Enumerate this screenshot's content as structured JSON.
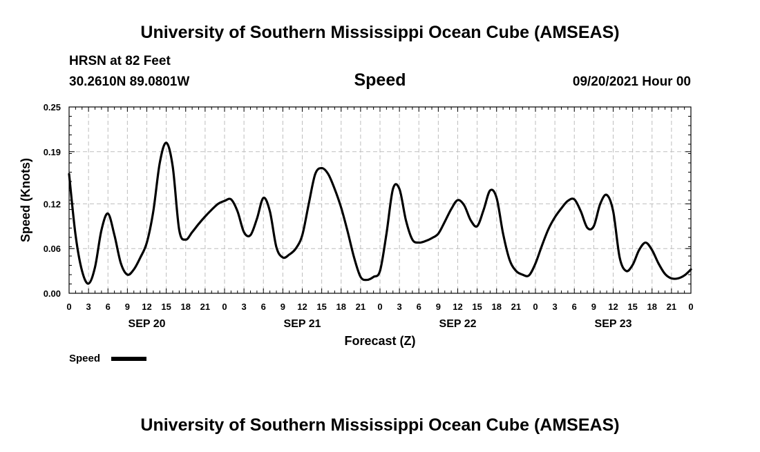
{
  "header": {
    "title": "University of Southern Mississippi Ocean Cube (AMSEAS)",
    "station": "HRSN at 82 Feet",
    "location": "30.2610N  89.0801W",
    "datetime": "09/20/2021 Hour 00"
  },
  "footer": {
    "title": "University of Southern Mississippi Ocean Cube (AMSEAS)"
  },
  "colors": {
    "line": "#000000",
    "grid": "#bdbdbd",
    "frame": "#000000"
  },
  "chart_data": {
    "type": "line",
    "title": "Speed",
    "xlabel": "Forecast (Z)",
    "ylabel": "Speed (Knots)",
    "xlim": [
      0,
      96
    ],
    "ylim": [
      0,
      0.25
    ],
    "x_unit": "hours from 09/20/2021 00Z",
    "y_ticks": [
      0,
      0.06,
      0.12,
      0.19,
      0.25
    ],
    "y_tick_labels": [
      "0.00",
      "0.06",
      "0.12",
      "0.19",
      "0.25"
    ],
    "x_ticks": [
      0,
      3,
      6,
      9,
      12,
      15,
      18,
      21,
      24,
      27,
      30,
      33,
      36,
      39,
      42,
      45,
      48,
      51,
      54,
      57,
      60,
      63,
      66,
      69,
      72,
      75,
      78,
      81,
      84,
      87,
      90,
      93,
      96
    ],
    "x_tick_labels": [
      "0",
      "3",
      "6",
      "9",
      "12",
      "15",
      "18",
      "21",
      "0",
      "3",
      "6",
      "9",
      "12",
      "15",
      "18",
      "21",
      "0",
      "3",
      "6",
      "9",
      "12",
      "15",
      "18",
      "21",
      "0",
      "3",
      "6",
      "9",
      "12",
      "15",
      "18",
      "21",
      "0"
    ],
    "day_labels": [
      {
        "x": 12,
        "label": "SEP 20"
      },
      {
        "x": 36,
        "label": "SEP 21"
      },
      {
        "x": 60,
        "label": "SEP 22"
      },
      {
        "x": 84,
        "label": "SEP 23"
      }
    ],
    "grid": true,
    "legend": {
      "position": "bottom-left",
      "label": "Speed"
    },
    "series": [
      {
        "name": "Speed",
        "x": [
          0,
          1,
          2,
          3,
          4,
          5,
          6,
          7,
          8,
          9,
          10,
          11,
          12,
          13,
          14,
          15,
          16,
          17,
          18,
          19,
          20,
          21,
          22,
          23,
          24,
          25,
          26,
          27,
          28,
          29,
          30,
          31,
          32,
          33,
          34,
          35,
          36,
          37,
          38,
          39,
          40,
          41,
          42,
          43,
          44,
          45,
          46,
          47,
          48,
          49,
          50,
          51,
          52,
          53,
          54,
          55,
          56,
          57,
          58,
          59,
          60,
          61,
          62,
          63,
          64,
          65,
          66,
          67,
          68,
          69,
          70,
          71,
          72,
          73,
          74,
          75,
          76,
          77,
          78,
          79,
          80,
          81,
          82,
          83,
          84,
          85,
          86,
          87,
          88,
          89,
          90,
          91,
          92,
          93,
          94,
          95,
          96
        ],
        "values": [
          0.16,
          0.078,
          0.03,
          0.013,
          0.035,
          0.085,
          0.107,
          0.078,
          0.04,
          0.025,
          0.032,
          0.048,
          0.068,
          0.11,
          0.175,
          0.202,
          0.17,
          0.085,
          0.072,
          0.082,
          0.093,
          0.103,
          0.112,
          0.12,
          0.124,
          0.126,
          0.11,
          0.082,
          0.078,
          0.1,
          0.128,
          0.11,
          0.062,
          0.048,
          0.052,
          0.06,
          0.078,
          0.12,
          0.16,
          0.168,
          0.16,
          0.14,
          0.115,
          0.083,
          0.048,
          0.022,
          0.018,
          0.022,
          0.03,
          0.08,
          0.14,
          0.14,
          0.098,
          0.072,
          0.068,
          0.07,
          0.074,
          0.08,
          0.096,
          0.113,
          0.125,
          0.118,
          0.098,
          0.09,
          0.112,
          0.138,
          0.128,
          0.08,
          0.045,
          0.03,
          0.025,
          0.024,
          0.04,
          0.064,
          0.086,
          0.102,
          0.114,
          0.124,
          0.126,
          0.11,
          0.088,
          0.09,
          0.12,
          0.132,
          0.11,
          0.048,
          0.03,
          0.038,
          0.058,
          0.068,
          0.058,
          0.04,
          0.026,
          0.02,
          0.02,
          0.024,
          0.032
        ]
      }
    ]
  }
}
